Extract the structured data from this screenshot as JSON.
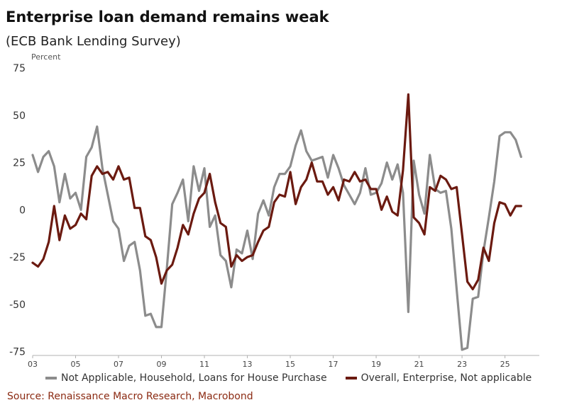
{
  "header": {
    "title": "Enterprise loan demand remains weak",
    "subtitle": "(ECB Bank Lending Survey)"
  },
  "source": {
    "text": "Source: Renaissance Macro Research, Macrobond",
    "color": "#8b2a12"
  },
  "chart_data": {
    "type": "line",
    "ylabel": "Percent",
    "ylim": [
      -77,
      78
    ],
    "xlim": [
      2003.0,
      2026.6
    ],
    "yticks": [
      75,
      50,
      25,
      0,
      -25,
      -50,
      -75
    ],
    "ytick_labels": [
      "75",
      "50",
      "25",
      "0",
      "-25",
      "-50",
      "-75"
    ],
    "xticks": [
      2003,
      2005,
      2007,
      2009,
      2011,
      2013,
      2015,
      2017,
      2019,
      2021,
      2023,
      2025
    ],
    "xtick_labels": [
      "03",
      "05",
      "07",
      "09",
      "11",
      "13",
      "15",
      "17",
      "19",
      "21",
      "23",
      "25"
    ],
    "grid": false,
    "legend_position": "bottom",
    "series": [
      {
        "name": "Not Applicable, Household, Loans for House Purchase",
        "color": "#8c8c8c",
        "points": [
          [
            2003.0,
            29
          ],
          [
            2003.25,
            20
          ],
          [
            2003.5,
            28
          ],
          [
            2003.75,
            31
          ],
          [
            2004.0,
            23
          ],
          [
            2004.25,
            4
          ],
          [
            2004.5,
            19
          ],
          [
            2004.75,
            6
          ],
          [
            2005.0,
            9
          ],
          [
            2005.25,
            0
          ],
          [
            2005.5,
            28
          ],
          [
            2005.75,
            33
          ],
          [
            2006.0,
            44
          ],
          [
            2006.25,
            22
          ],
          [
            2006.5,
            8
          ],
          [
            2006.75,
            -6
          ],
          [
            2007.0,
            -10
          ],
          [
            2007.25,
            -27
          ],
          [
            2007.5,
            -19
          ],
          [
            2007.75,
            -17
          ],
          [
            2008.0,
            -32
          ],
          [
            2008.25,
            -56
          ],
          [
            2008.5,
            -55
          ],
          [
            2008.75,
            -62
          ],
          [
            2009.0,
            -62
          ],
          [
            2009.25,
            -31
          ],
          [
            2009.5,
            3
          ],
          [
            2009.75,
            9
          ],
          [
            2010.0,
            16
          ],
          [
            2010.25,
            -6
          ],
          [
            2010.5,
            23
          ],
          [
            2010.75,
            10
          ],
          [
            2011.0,
            22
          ],
          [
            2011.25,
            -9
          ],
          [
            2011.5,
            -3
          ],
          [
            2011.75,
            -24
          ],
          [
            2012.0,
            -27
          ],
          [
            2012.25,
            -41
          ],
          [
            2012.5,
            -21
          ],
          [
            2012.75,
            -23
          ],
          [
            2013.0,
            -11
          ],
          [
            2013.25,
            -26
          ],
          [
            2013.5,
            -2
          ],
          [
            2013.75,
            5
          ],
          [
            2014.0,
            -3
          ],
          [
            2014.25,
            12
          ],
          [
            2014.5,
            19
          ],
          [
            2014.75,
            19
          ],
          [
            2015.0,
            23
          ],
          [
            2015.25,
            34
          ],
          [
            2015.5,
            42
          ],
          [
            2015.75,
            31
          ],
          [
            2016.0,
            26
          ],
          [
            2016.25,
            27
          ],
          [
            2016.5,
            28
          ],
          [
            2016.75,
            17
          ],
          [
            2017.0,
            29
          ],
          [
            2017.25,
            22
          ],
          [
            2017.5,
            13
          ],
          [
            2017.75,
            8
          ],
          [
            2018.0,
            3
          ],
          [
            2018.25,
            9
          ],
          [
            2018.5,
            22
          ],
          [
            2018.75,
            8
          ],
          [
            2019.0,
            9
          ],
          [
            2019.25,
            14
          ],
          [
            2019.5,
            25
          ],
          [
            2019.75,
            16
          ],
          [
            2020.0,
            24
          ],
          [
            2020.25,
            9
          ],
          [
            2020.5,
            -54
          ],
          [
            2020.75,
            26
          ],
          [
            2021.0,
            8
          ],
          [
            2021.25,
            -2
          ],
          [
            2021.5,
            29
          ],
          [
            2021.75,
            11
          ],
          [
            2022.0,
            9
          ],
          [
            2022.25,
            10
          ],
          [
            2022.5,
            -10
          ],
          [
            2022.75,
            -42
          ],
          [
            2023.0,
            -74
          ],
          [
            2023.25,
            -73
          ],
          [
            2023.5,
            -47
          ],
          [
            2023.75,
            -46
          ],
          [
            2024.0,
            -22
          ],
          [
            2024.25,
            -4
          ],
          [
            2024.5,
            15
          ],
          [
            2024.75,
            39
          ],
          [
            2025.0,
            41
          ],
          [
            2025.25,
            41
          ],
          [
            2025.5,
            37
          ],
          [
            2025.75,
            28
          ]
        ]
      },
      {
        "name": "Overall, Enterprise, Not applicable",
        "color": "#6b1a10",
        "points": [
          [
            2003.0,
            -28
          ],
          [
            2003.25,
            -30
          ],
          [
            2003.5,
            -26
          ],
          [
            2003.75,
            -17
          ],
          [
            2004.0,
            2
          ],
          [
            2004.25,
            -16
          ],
          [
            2004.5,
            -3
          ],
          [
            2004.75,
            -10
          ],
          [
            2005.0,
            -8
          ],
          [
            2005.25,
            -2
          ],
          [
            2005.5,
            -5
          ],
          [
            2005.75,
            18
          ],
          [
            2006.0,
            23
          ],
          [
            2006.25,
            19
          ],
          [
            2006.5,
            20
          ],
          [
            2006.75,
            16
          ],
          [
            2007.0,
            23
          ],
          [
            2007.25,
            16
          ],
          [
            2007.5,
            17
          ],
          [
            2007.75,
            1
          ],
          [
            2008.0,
            1
          ],
          [
            2008.25,
            -14
          ],
          [
            2008.5,
            -16
          ],
          [
            2008.75,
            -25
          ],
          [
            2009.0,
            -39
          ],
          [
            2009.25,
            -32
          ],
          [
            2009.5,
            -29
          ],
          [
            2009.75,
            -20
          ],
          [
            2010.0,
            -8
          ],
          [
            2010.25,
            -13
          ],
          [
            2010.5,
            -2
          ],
          [
            2010.75,
            6
          ],
          [
            2011.0,
            9
          ],
          [
            2011.25,
            19
          ],
          [
            2011.5,
            4
          ],
          [
            2011.75,
            -7
          ],
          [
            2012.0,
            -9
          ],
          [
            2012.25,
            -30
          ],
          [
            2012.5,
            -24
          ],
          [
            2012.75,
            -27
          ],
          [
            2013.0,
            -25
          ],
          [
            2013.25,
            -24
          ],
          [
            2013.5,
            -17
          ],
          [
            2013.75,
            -11
          ],
          [
            2014.0,
            -9
          ],
          [
            2014.25,
            4
          ],
          [
            2014.5,
            8
          ],
          [
            2014.75,
            7
          ],
          [
            2015.0,
            20
          ],
          [
            2015.25,
            3
          ],
          [
            2015.5,
            12
          ],
          [
            2015.75,
            16
          ],
          [
            2016.0,
            25
          ],
          [
            2016.25,
            15
          ],
          [
            2016.5,
            15
          ],
          [
            2016.75,
            8
          ],
          [
            2017.0,
            12
          ],
          [
            2017.25,
            5
          ],
          [
            2017.5,
            16
          ],
          [
            2017.75,
            15
          ],
          [
            2018.0,
            20
          ],
          [
            2018.25,
            15
          ],
          [
            2018.5,
            16
          ],
          [
            2018.75,
            11
          ],
          [
            2019.0,
            11
          ],
          [
            2019.25,
            0
          ],
          [
            2019.5,
            7
          ],
          [
            2019.75,
            -1
          ],
          [
            2020.0,
            -3
          ],
          [
            2020.25,
            21
          ],
          [
            2020.5,
            61
          ],
          [
            2020.75,
            -4
          ],
          [
            2021.0,
            -7
          ],
          [
            2021.25,
            -13
          ],
          [
            2021.5,
            12
          ],
          [
            2021.75,
            10
          ],
          [
            2022.0,
            18
          ],
          [
            2022.25,
            16
          ],
          [
            2022.5,
            11
          ],
          [
            2022.75,
            12
          ],
          [
            2023.0,
            -13
          ],
          [
            2023.25,
            -38
          ],
          [
            2023.5,
            -42
          ],
          [
            2023.75,
            -37
          ],
          [
            2024.0,
            -20
          ],
          [
            2024.25,
            -27
          ],
          [
            2024.5,
            -7
          ],
          [
            2024.75,
            4
          ],
          [
            2025.0,
            3
          ],
          [
            2025.25,
            -3
          ],
          [
            2025.5,
            2
          ],
          [
            2025.75,
            2
          ]
        ]
      }
    ]
  }
}
